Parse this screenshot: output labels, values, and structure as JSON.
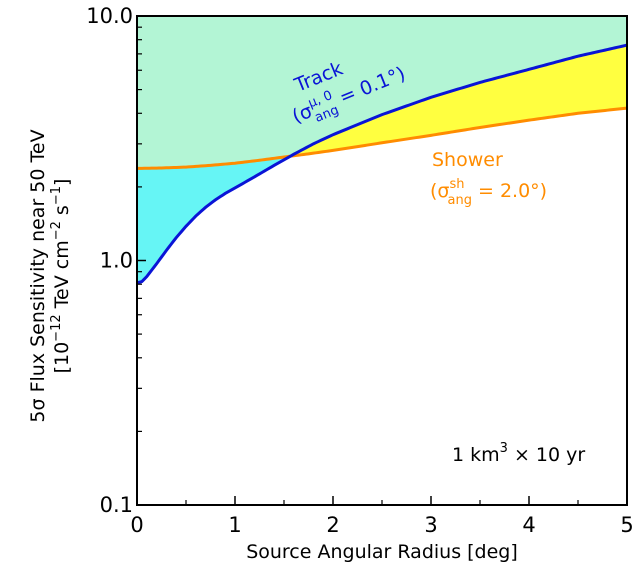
{
  "chart_data": {
    "type": "area",
    "xlabel": "Source Angular Radius [deg]",
    "ylabel": {
      "line1": "5σ Flux Sensitivity near 50 TeV",
      "line2_main": "[10",
      "line2_exp1": "−12",
      "line2_mid": " TeV cm",
      "line2_exp2": "−2",
      "line2_s": " s",
      "line2_exp3": "−1",
      "line2_end": "]"
    },
    "xlim": [
      0,
      5
    ],
    "ylim": [
      0.1,
      10.0
    ],
    "yscale": "log",
    "xticks": [
      0,
      1,
      2,
      3,
      4,
      5
    ],
    "xtick_labels": [
      "0",
      "1",
      "2",
      "3",
      "4",
      "5"
    ],
    "yticks": [
      0.1,
      1.0,
      10.0
    ],
    "ytick_labels": [
      "0.1",
      "1.0",
      "10.0"
    ],
    "series": [
      {
        "name": "Track",
        "color": "#0a14d6",
        "x": [
          0,
          0.05,
          0.1,
          0.2,
          0.3,
          0.4,
          0.5,
          0.6,
          0.7,
          0.8,
          0.9,
          1.0,
          1.2,
          1.4,
          1.6,
          1.8,
          2.0,
          2.5,
          3.0,
          3.5,
          4.0,
          4.5,
          5.0
        ],
        "y": [
          0.81,
          0.82,
          0.86,
          0.97,
          1.1,
          1.24,
          1.38,
          1.52,
          1.65,
          1.77,
          1.88,
          1.98,
          2.2,
          2.45,
          2.72,
          3.0,
          3.27,
          3.95,
          4.65,
          5.35,
          6.05,
          6.85,
          7.6
        ]
      },
      {
        "name": "Shower",
        "color": "#ff8c00",
        "x": [
          0,
          0.25,
          0.5,
          0.75,
          1.0,
          1.25,
          1.5,
          1.75,
          2.0,
          2.5,
          3.0,
          3.5,
          4.0,
          4.5,
          5.0
        ],
        "y": [
          2.38,
          2.39,
          2.41,
          2.45,
          2.5,
          2.57,
          2.65,
          2.73,
          2.82,
          3.03,
          3.25,
          3.5,
          3.75,
          4.0,
          4.2
        ]
      }
    ],
    "fill_colors": {
      "above_both": "#b3f5d5",
      "between_track_above": "#ffff40",
      "between_shower_above": "#66f5f5"
    },
    "annotations": {
      "track_line1": "Track",
      "track_sigma": "(σ",
      "track_sup": "μ, 0",
      "track_sub": "ang",
      "track_rest": " = 0.1°)",
      "shower_line1": "Shower",
      "shower_sigma": "(σ",
      "shower_sup": "sh",
      "shower_sub": "ang",
      "shower_rest": " = 2.0°)",
      "exposure_pre": "1 km",
      "exposure_sup": "3",
      "exposure_post": " × 10 yr"
    }
  }
}
